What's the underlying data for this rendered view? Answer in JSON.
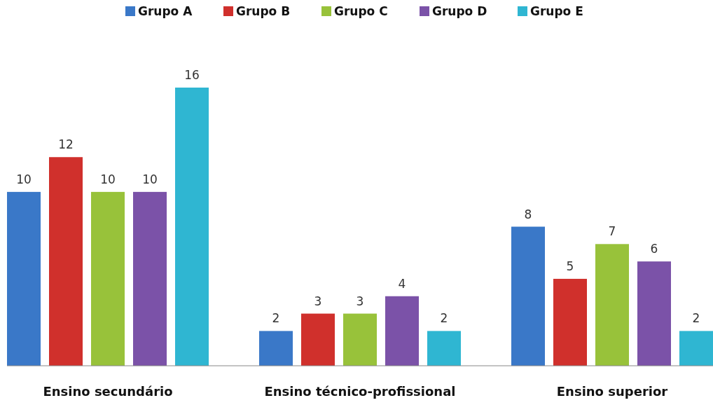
{
  "chart_data": {
    "type": "bar",
    "categories": [
      "Ensino secundário",
      "Ensino técnico-profissional",
      "Ensino superior"
    ],
    "series": [
      {
        "name": "Grupo A",
        "color": "#3a78c8",
        "values": [
          10,
          2,
          8
        ]
      },
      {
        "name": "Grupo B",
        "color": "#d0302c",
        "values": [
          12,
          3,
          5
        ]
      },
      {
        "name": "Grupo C",
        "color": "#98c23a",
        "values": [
          10,
          3,
          7
        ]
      },
      {
        "name": "Grupo D",
        "color": "#7b52a8",
        "values": [
          10,
          4,
          6
        ]
      },
      {
        "name": "Grupo E",
        "color": "#2fb6d2",
        "values": [
          16,
          2,
          2
        ]
      }
    ],
    "data_labels": true,
    "legend": "top"
  }
}
